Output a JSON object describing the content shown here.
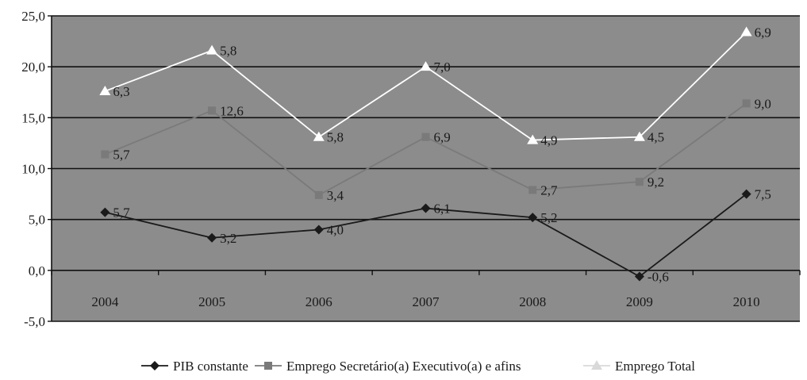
{
  "chart_data": {
    "type": "line",
    "categories": [
      "2004",
      "2005",
      "2006",
      "2007",
      "2008",
      "2009",
      "2010"
    ],
    "ylim": [
      -5,
      25
    ],
    "yticks": [
      25,
      20,
      15,
      10,
      5,
      0,
      -5
    ],
    "ytick_labels": [
      "25,0",
      "20,0",
      "15,0",
      "10,0",
      "5,0",
      "0,0",
      "-5,0"
    ],
    "grid": true,
    "legend_position": "bottom",
    "series": [
      {
        "name": "PIB constante",
        "color": "#1a1a1a",
        "marker": "diamond",
        "values": [
          5.7,
          3.2,
          4.0,
          6.1,
          5.2,
          -0.6,
          7.5
        ],
        "labels": [
          "5,7",
          "3,2",
          "4,0",
          "6,1",
          "5,2",
          "-0,6",
          "7,5"
        ]
      },
      {
        "name": "Emprego Secretário(a) Executivo(a) e afins",
        "color": "#7a7a7a",
        "marker": "square",
        "values": [
          11.4,
          15.7,
          7.4,
          13.1,
          7.9,
          8.7,
          16.4
        ],
        "labels": [
          "5,7",
          "12,6",
          "3,4",
          "6,9",
          "2,7",
          "9,2",
          "9,0"
        ]
      },
      {
        "name": "Emprego Total",
        "color": "#ffffff",
        "marker": "triangle",
        "values": [
          17.6,
          21.6,
          13.1,
          20.0,
          12.8,
          13.1,
          23.4
        ],
        "labels": [
          "6,3",
          "5,8",
          "5,8",
          "7,0",
          "4,9",
          "4,5",
          "6,9"
        ]
      }
    ]
  }
}
